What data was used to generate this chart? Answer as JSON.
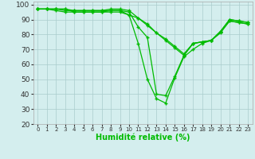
{
  "xlabel": "Humidité relative (%)",
  "background_color": "#d4eeee",
  "grid_color": "#aacccc",
  "line_color": "#00bb00",
  "xlim": [
    -0.5,
    23.5
  ],
  "ylim": [
    20,
    102
  ],
  "yticks": [
    20,
    30,
    40,
    50,
    60,
    70,
    80,
    90,
    100
  ],
  "xticks": [
    0,
    1,
    2,
    3,
    4,
    5,
    6,
    7,
    8,
    9,
    10,
    11,
    12,
    13,
    14,
    15,
    16,
    17,
    18,
    19,
    20,
    21,
    22,
    23
  ],
  "lines": [
    [
      97,
      97,
      97,
      97,
      95,
      95,
      95,
      95,
      95,
      95,
      93,
      74,
      50,
      37,
      34,
      51,
      65,
      70,
      74,
      76,
      81,
      89,
      88,
      87
    ],
    [
      97,
      97,
      97,
      96,
      96,
      96,
      96,
      96,
      96,
      96,
      95,
      85,
      78,
      40,
      39,
      52,
      66,
      74,
      75,
      76,
      82,
      89,
      88,
      87
    ],
    [
      97,
      97,
      97,
      97,
      96,
      96,
      96,
      96,
      97,
      97,
      96,
      91,
      86,
      81,
      76,
      71,
      66,
      74,
      75,
      76,
      82,
      90,
      89,
      88
    ],
    [
      97,
      97,
      96,
      95,
      95,
      95,
      95,
      95,
      96,
      96,
      93,
      91,
      87,
      81,
      77,
      72,
      67,
      74,
      75,
      76,
      82,
      90,
      89,
      88
    ]
  ],
  "ytick_fontsize": 6.5,
  "xtick_fontsize": 5.0,
  "xlabel_fontsize": 7.0
}
